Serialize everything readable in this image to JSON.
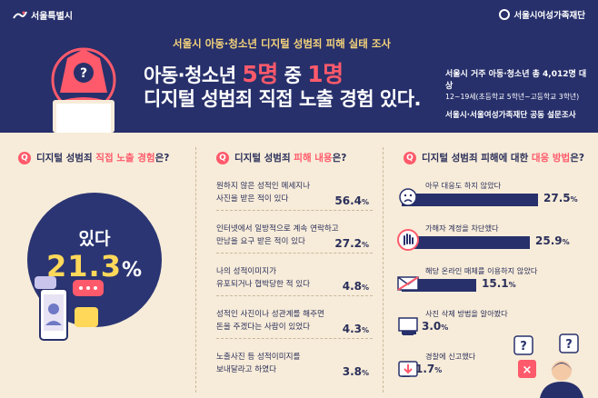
{
  "header": {
    "org_left": "서울특별시",
    "org_right": "서울시여성가족재단",
    "survey_title": "서울시 아동·청소년 디지털 성범죄 피해 실태 조사",
    "headline_pre": "아동·청소년 ",
    "headline_hl1": "5명",
    "headline_mid": " 중 ",
    "headline_hl2": "1명",
    "headline2": "디지털 성범죄 직접 노출 경험 있다.",
    "info_a": "서울시 거주 아동·청소년 총 4,012명 대상",
    "info_b": "12~19세(초등학교 5학년~고등학교 3학년)",
    "info_c": "서울시·서울여성가족재단 공동 설문조사"
  },
  "panel1": {
    "q": "Q",
    "title_pre": "디지털 성범죄 ",
    "title_hl": "직접 노출 경험",
    "title_post": "은?",
    "label": "있다",
    "value": "21.3",
    "pct": "%"
  },
  "panel2": {
    "q": "Q",
    "title_pre": "디지털 성범죄 ",
    "title_hl": "피해 내용",
    "title_post": "은?",
    "items": [
      {
        "line1": "원하지 않은 성적인 메세지나",
        "line2": "사진을 받은 적이 있다",
        "value": "56.4",
        "pct": "%"
      },
      {
        "line1": "인터넷에서 일방적으로 계속 연락하고",
        "line2": "만남을 요구 받은 적이 있다",
        "value": "27.2",
        "pct": "%"
      },
      {
        "line1": "나의 성적이미지가",
        "line2": "유포되거나 협박당한 적 있다",
        "value": "4.8",
        "pct": "%"
      },
      {
        "line1": "성적인 사진이나 성관계를 해주면",
        "line2": "돈을 주겠다는 사람이 있었다",
        "value": "4.3",
        "pct": "%"
      },
      {
        "line1": "노출사진 등 성적이미지를",
        "line2": "보내달라고 하였다",
        "value": "3.8",
        "pct": "%"
      }
    ]
  },
  "panel3": {
    "q": "Q",
    "title_pre": "디지털 성범죄 피해에 대한 ",
    "title_hl": "대응 방법",
    "title_post": "은?",
    "bars": [
      {
        "label": "아무 대응도 하지 않았다",
        "value": 27.5,
        "text": "27.5",
        "pct": "%",
        "icon": "sad-face-icon"
      },
      {
        "label": "가해자 계정을 차단했다",
        "value": 25.9,
        "text": "25.9",
        "pct": "%",
        "icon": "stop-hand-icon"
      },
      {
        "label": "해당 온라인 매체를 이용하지 않았다",
        "value": 15.1,
        "text": "15.1",
        "pct": "%",
        "icon": "blocked-mail-icon"
      },
      {
        "label": "사진 삭제 방법을 알아봤다",
        "value": 3.0,
        "text": "3.0",
        "pct": "%",
        "icon": "computer-icon"
      },
      {
        "label": "경찰에 신고했다",
        "value": 1.7,
        "text": "1.7",
        "pct": "%",
        "icon": "report-icon"
      }
    ]
  },
  "colors": {
    "navy": "#27306b",
    "coral": "#ff5a6b",
    "yellow": "#ffd85a",
    "cream": "#f7ecd9"
  }
}
